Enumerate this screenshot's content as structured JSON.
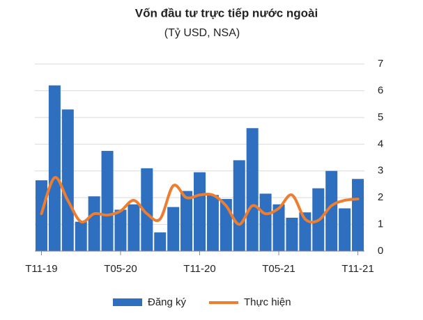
{
  "chart_data": {
    "type": "bar_line",
    "title": "Vốn đầu tư trực tiếp nước ngoài",
    "subtitle": "(Tỷ USD, NSA)",
    "categories": [
      "T11-19",
      null,
      null,
      null,
      null,
      null,
      "T05-20",
      null,
      null,
      null,
      null,
      null,
      "T11-20",
      null,
      null,
      null,
      null,
      null,
      "T05-21",
      null,
      null,
      null,
      null,
      null,
      "T11-21"
    ],
    "series": [
      {
        "name": "Đăng ký",
        "color": "#2e6fc0",
        "values": [
          2.65,
          6.2,
          5.3,
          1.1,
          2.05,
          3.75,
          1.55,
          1.75,
          3.1,
          0.7,
          1.65,
          2.25,
          2.95,
          2.1,
          1.95,
          3.4,
          4.6,
          2.15,
          1.75,
          1.25,
          1.45,
          2.35,
          3.0,
          1.6,
          2.7
        ]
      },
      {
        "name": "Thực hiện",
        "color": "#ed7d31",
        "values": [
          1.4,
          2.75,
          1.9,
          1.1,
          1.4,
          1.35,
          1.5,
          1.9,
          1.4,
          1.2,
          2.45,
          2.0,
          2.1,
          2.1,
          1.7,
          1.0,
          1.7,
          1.4,
          1.6,
          2.1,
          1.2,
          1.15,
          1.7,
          1.9,
          1.95
        ]
      }
    ],
    "ylim": [
      0,
      7
    ],
    "yticks": [
      0,
      1,
      2,
      3,
      4,
      5,
      6,
      7
    ],
    "grid": true
  }
}
